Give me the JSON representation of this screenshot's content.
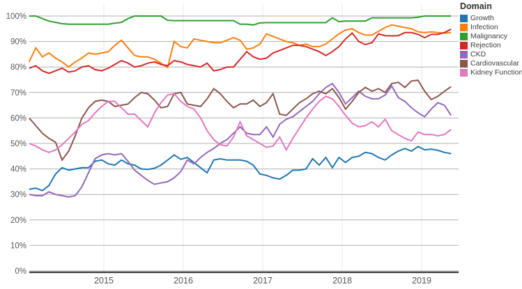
{
  "chart_data": {
    "type": "line",
    "title": "",
    "legend_title": "Domain",
    "legend_position": "top-right",
    "grid": true,
    "x_axis_type": "temporal-years",
    "x_domain_years": [
      2014.06,
      2019.37
    ],
    "x_ticks": [
      2015,
      2016,
      2017,
      2018,
      2019
    ],
    "y_ticks_percent": [
      0,
      10,
      20,
      30,
      40,
      50,
      60,
      70,
      80,
      90,
      100
    ],
    "y_tick_suffix": "%",
    "ylim": [
      0,
      100
    ],
    "colors": {
      "background": "#ffffff",
      "gridline": "#b0b0b0",
      "year_gridline": "#e9e9e9",
      "axis_line": "#3e3e3e",
      "axis_label": "#565656",
      "legend_title": "#2e2e2e",
      "legend_label": "#3d3d3d"
    },
    "series": [
      {
        "name": "Growth",
        "color": "#1f77b4",
        "values": [
          32,
          32.5,
          31.5,
          33.5,
          38,
          40.5,
          39.5,
          40,
          40.5,
          40.5,
          43,
          43.5,
          42,
          41.5,
          43.5,
          42,
          41.5,
          40,
          39.8,
          40.3,
          41.5,
          43.5,
          45.5,
          43.8,
          44.5,
          42.5,
          40.5,
          38.5,
          43.5,
          44,
          43.5,
          43.5,
          43.5,
          43,
          41.5,
          38,
          37.5,
          36.5,
          36,
          37.5,
          39.5,
          39.5,
          40,
          44,
          41.5,
          44.5,
          40.5,
          44.5,
          42.5,
          44.5,
          45,
          46.5,
          46,
          44.5,
          43.5,
          45.5,
          47,
          48,
          47,
          48.8,
          47.5,
          47.8,
          47.3,
          46.5,
          46
        ]
      },
      {
        "name": "Infection",
        "color": "#ff7f0e",
        "values": [
          82,
          87.5,
          84,
          85.5,
          83.5,
          82,
          80,
          82,
          83.5,
          85.5,
          85,
          85.5,
          86,
          88.5,
          90.5,
          87.5,
          84.5,
          84,
          84,
          83,
          81.5,
          79.8,
          90,
          88,
          87.5,
          91,
          90.5,
          90,
          89.5,
          89.5,
          90.5,
          91.5,
          90.5,
          87,
          87.5,
          89,
          93,
          92,
          91,
          90,
          89.5,
          88.5,
          89,
          88,
          88,
          89,
          91,
          93,
          94.5,
          95,
          93.5,
          92.5,
          92.5,
          94,
          95.5,
          96.5,
          96,
          95.5,
          95,
          93.8,
          93.5,
          93.8,
          93.5,
          93.3,
          93.5
        ]
      },
      {
        "name": "Malignancy",
        "color": "#2ca02c",
        "values": [
          100,
          100,
          99,
          98,
          97.5,
          97,
          96.8,
          96.8,
          96.8,
          96.8,
          96.8,
          96.8,
          96.8,
          97.2,
          97.5,
          99,
          100,
          100,
          100,
          100,
          100,
          98.3,
          98.2,
          98.2,
          98.2,
          98.2,
          98.2,
          98.2,
          98.2,
          98.2,
          98.2,
          98.2,
          96.8,
          96.8,
          96.5,
          97.3,
          97.4,
          97.4,
          97.4,
          97.4,
          97.4,
          97.4,
          97.4,
          97.4,
          97.4,
          97.4,
          99.3,
          97.8,
          98,
          98,
          98,
          98,
          99.3,
          99.3,
          99.3,
          99.3,
          99.3,
          99.3,
          99.3,
          99.5,
          100,
          100,
          100,
          100,
          100
        ]
      },
      {
        "name": "Rejection",
        "color": "#d62728",
        "values": [
          79.5,
          80.5,
          78.5,
          77.5,
          78.5,
          79.5,
          78,
          78.5,
          80,
          80.5,
          79,
          78.5,
          79.5,
          81,
          82.5,
          81.5,
          80,
          80.5,
          81.5,
          82,
          81,
          80.5,
          82.5,
          82,
          81,
          80.5,
          80,
          81.5,
          78.5,
          79,
          80,
          80,
          83,
          86,
          84,
          83,
          83.5,
          85.5,
          86.5,
          87.5,
          88.5,
          88.5,
          88,
          87,
          86,
          84.5,
          86,
          88,
          91,
          93.3,
          90,
          88.8,
          89.5,
          93,
          92.3,
          92.2,
          92.3,
          93.5,
          93.5,
          92.8,
          91.5,
          92.8,
          92.8,
          93.5,
          94.8
        ]
      },
      {
        "name": "CKD",
        "color": "#9467bd",
        "values": [
          30,
          29.5,
          29.5,
          31,
          30,
          29.5,
          29,
          29.5,
          33,
          38.5,
          44,
          45.5,
          46,
          45.5,
          46,
          43,
          39.5,
          37.5,
          35.5,
          34,
          34.5,
          35,
          36.5,
          39,
          43.5,
          42,
          44.5,
          46.5,
          48,
          50,
          51.5,
          54,
          56.5,
          54,
          53.5,
          53.5,
          56.5,
          52.5,
          57.5,
          59.5,
          60.5,
          62.5,
          64.5,
          66.5,
          69.5,
          72,
          73.5,
          70,
          65.5,
          68,
          70.5,
          68.5,
          67.5,
          67.5,
          69,
          72.5,
          68,
          66.5,
          64,
          62,
          60.5,
          63.5,
          66,
          65,
          61
        ]
      },
      {
        "name": "Cardiovascular",
        "color": "#8c564b",
        "values": [
          60,
          57,
          54,
          52,
          50.5,
          43.5,
          47,
          53,
          60,
          64,
          66.5,
          67,
          66.5,
          64.5,
          65,
          65.5,
          68,
          70,
          69.5,
          67,
          64,
          64.5,
          69.5,
          70,
          65.5,
          65,
          64.5,
          67.5,
          71.5,
          69.5,
          66.5,
          64,
          65.5,
          65.5,
          67,
          64.5,
          66,
          69.5,
          61.5,
          61,
          63.5,
          66,
          67.5,
          69.5,
          70.5,
          69.5,
          71.5,
          68,
          63.5,
          66.5,
          70,
          72,
          70.5,
          71.5,
          70,
          73.5,
          74,
          72,
          74.5,
          74.8,
          70.5,
          67.2,
          68.5,
          70.5,
          72.3
        ]
      },
      {
        "name": "Kidney Function",
        "color": "#e377c2",
        "values": [
          50,
          49,
          47.5,
          46.5,
          47.5,
          49.5,
          52,
          54.5,
          57.5,
          59,
          62,
          64.5,
          66.5,
          66.5,
          64,
          61.5,
          61.5,
          59,
          56.5,
          62,
          66,
          69,
          69.5,
          66.5,
          64.5,
          63.5,
          60,
          55,
          51.5,
          49.5,
          49,
          52.5,
          58.5,
          53,
          51.5,
          50,
          48.5,
          49,
          52.5,
          47.5,
          52,
          56,
          60,
          63.5,
          66.5,
          68.5,
          67.5,
          64.5,
          61,
          58,
          56.5,
          57,
          58.5,
          56.5,
          59.5,
          55,
          53.5,
          52,
          51,
          54.5,
          53.5,
          53.5,
          53,
          53.5,
          55.5
        ]
      }
    ]
  }
}
